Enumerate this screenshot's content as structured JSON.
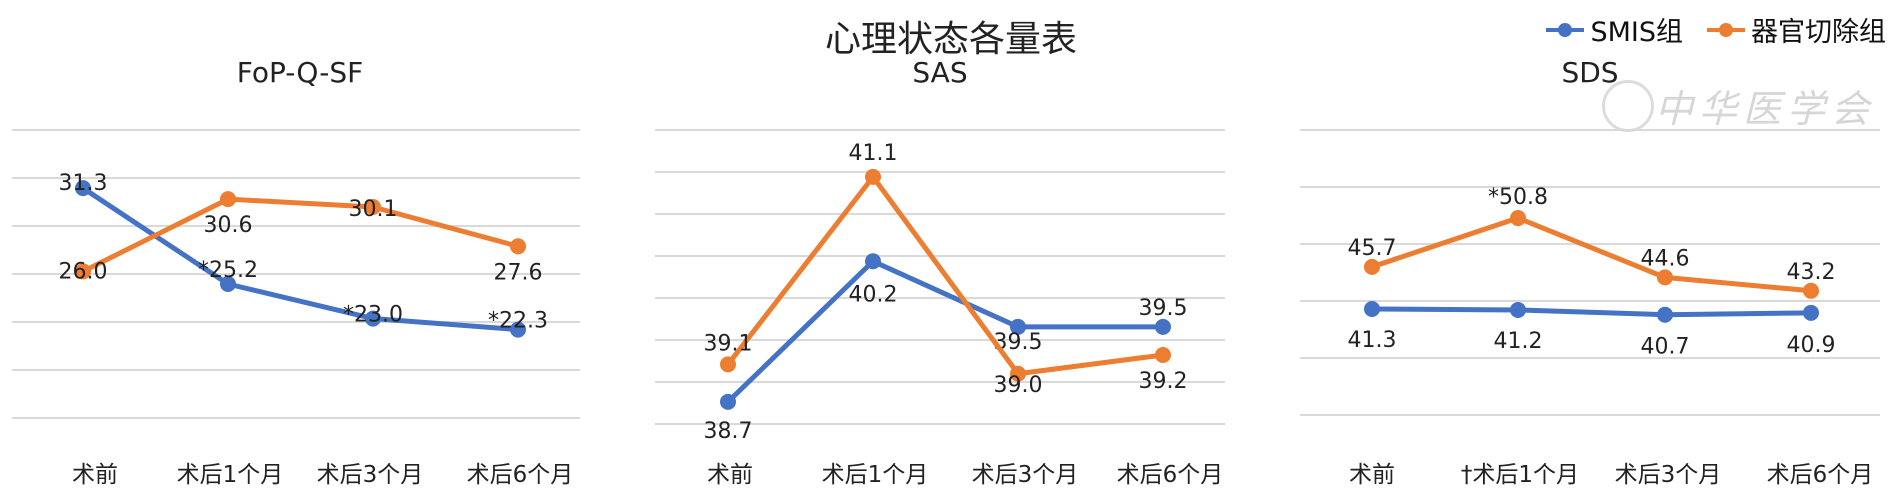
{
  "title": "心理状态各量表",
  "legend": [
    {
      "name": "SMIS组",
      "color": "#4472C4"
    },
    {
      "name": "器官切除组",
      "color": "#ED7D31"
    }
  ],
  "watermark": "中华医学会",
  "chart_data": [
    {
      "type": "line",
      "title": "FoP-Q-SF",
      "categories": [
        "术前",
        "术后1个月",
        "术后3个月",
        "术后6个月"
      ],
      "ylim": [
        14,
        35
      ],
      "grid": true,
      "series": [
        {
          "name": "SMIS组",
          "color": "#4472C4",
          "values": [
            31.3,
            25.2,
            23.0,
            22.3
          ],
          "labels": [
            "31.3",
            "*25.2",
            "*23.0",
            "*22.3"
          ]
        },
        {
          "name": "器官切除组",
          "color": "#ED7D31",
          "values": [
            26.0,
            30.6,
            30.1,
            27.6
          ],
          "labels": [
            "26.0",
            "30.6",
            "30.1",
            "27.6"
          ]
        }
      ]
    },
    {
      "type": "line",
      "title": "SAS",
      "categories": [
        "术前",
        "术后1个月",
        "术后3个月",
        "术后6个月"
      ],
      "ylim": [
        38.4,
        41.6
      ],
      "grid": true,
      "series": [
        {
          "name": "SMIS组",
          "color": "#4472C4",
          "values": [
            38.7,
            40.2,
            39.5,
            39.5
          ],
          "labels": [
            "38.7",
            "40.2",
            "39.5",
            "39.5"
          ]
        },
        {
          "name": "器官切除组",
          "color": "#ED7D31",
          "values": [
            39.1,
            41.1,
            39.0,
            39.2
          ],
          "labels": [
            "39.1",
            "41.1",
            "39.0",
            "39.2"
          ]
        }
      ]
    },
    {
      "type": "line",
      "title": "SDS",
      "categories": [
        "术前",
        "†术后1个月",
        "术后3个月",
        "术后6个月"
      ],
      "ylim": [
        25,
        60
      ],
      "grid": true,
      "series": [
        {
          "name": "SMIS组",
          "color": "#4472C4",
          "values": [
            41.3,
            41.2,
            40.7,
            40.9
          ],
          "labels": [
            "41.3",
            "41.2",
            "40.7",
            "40.9"
          ]
        },
        {
          "name": "器官切除组",
          "color": "#ED7D31",
          "values": [
            45.7,
            50.8,
            44.6,
            43.2
          ],
          "labels": [
            "45.7",
            "*50.8",
            "44.6",
            "43.2"
          ]
        }
      ]
    }
  ]
}
